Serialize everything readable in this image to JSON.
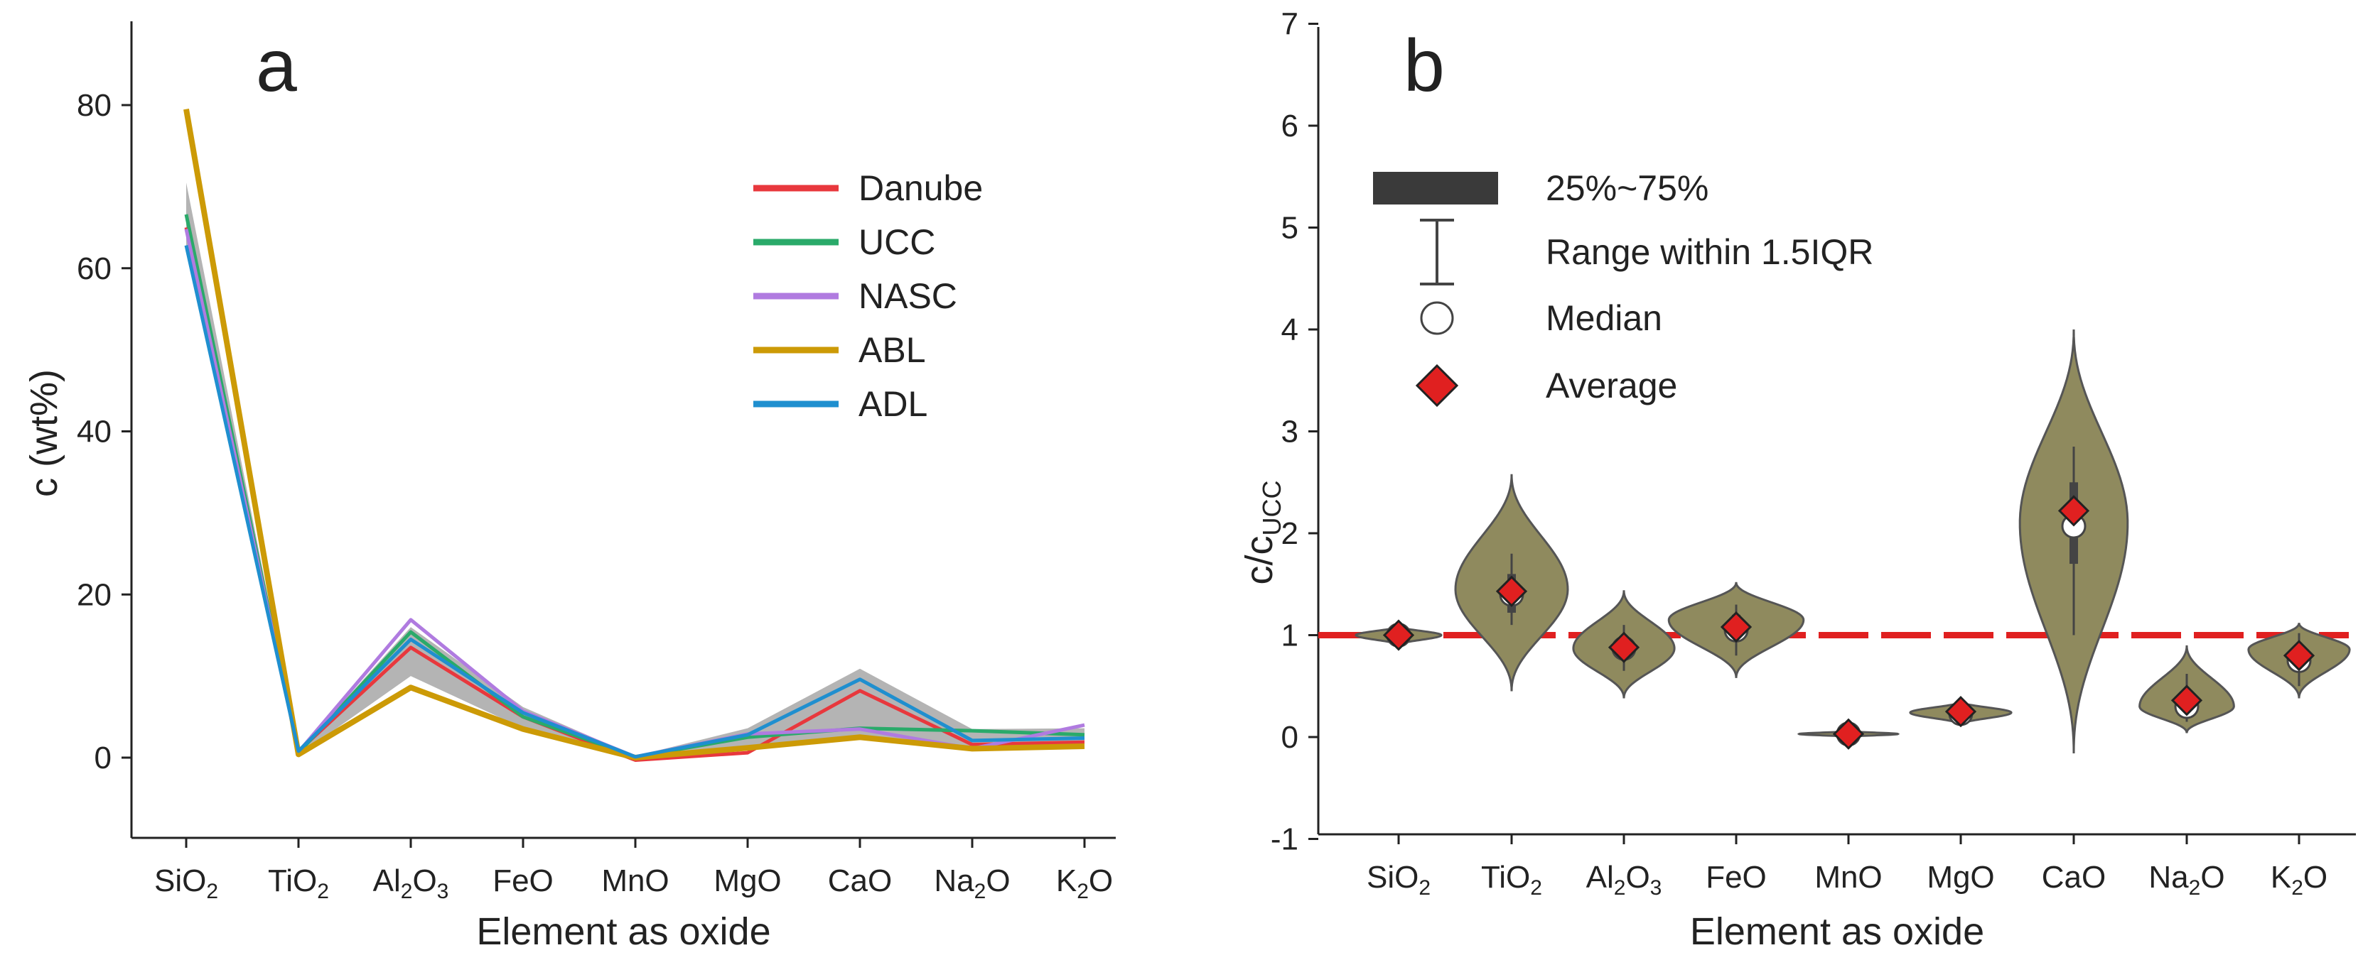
{
  "chart_data": [
    {
      "panel_label": "a",
      "type": "line",
      "xlabel": "Element as oxide",
      "ylabel": "c (wt%)",
      "ylim": [
        -10,
        90
      ],
      "yticks": [
        0,
        20,
        40,
        60,
        80
      ],
      "categories": [
        {
          "base": "SiO",
          "sub": "2",
          "tail": ""
        },
        {
          "base": "TiO",
          "sub": "2",
          "tail": ""
        },
        {
          "base": "Al",
          "sub": "2",
          "tail": "O",
          "sub2": "3"
        },
        {
          "base": "FeO",
          "sub": "",
          "tail": ""
        },
        {
          "base": "MnO",
          "sub": "",
          "tail": ""
        },
        {
          "base": "MgO",
          "sub": "",
          "tail": ""
        },
        {
          "base": "CaO",
          "sub": "",
          "tail": ""
        },
        {
          "base": "Na",
          "sub": "2",
          "tail": "O"
        },
        {
          "base": "K",
          "sub": "2",
          "tail": "O"
        }
      ],
      "range_band": {
        "color": "#b4b4b4",
        "upper": [
          70.5,
          0.8,
          16.0,
          6.2,
          0.2,
          3.6,
          10.9,
          3.5,
          3.6
        ],
        "lower": [
          62.0,
          0.3,
          10.0,
          3.6,
          0.0,
          1.0,
          2.6,
          1.0,
          1.3
        ]
      },
      "series": [
        {
          "name": "Danube",
          "color": "#e8383d",
          "values": [
            65.0,
            0.8,
            13.5,
            5.0,
            -0.3,
            0.6,
            8.2,
            1.6,
            1.9
          ]
        },
        {
          "name": "UCC",
          "color": "#2aaa6a",
          "values": [
            66.6,
            0.6,
            15.4,
            5.0,
            0.1,
            2.5,
            3.6,
            3.3,
            2.8
          ]
        },
        {
          "name": "NASC",
          "color": "#b07be0",
          "values": [
            64.8,
            0.7,
            16.9,
            5.7,
            0.1,
            2.9,
            3.5,
            1.1,
            4.0
          ]
        },
        {
          "name": "ABL",
          "color": "#cc9a06",
          "values": [
            79.5,
            0.4,
            8.6,
            3.5,
            0.0,
            1.2,
            2.5,
            1.1,
            1.4
          ]
        },
        {
          "name": "ADL",
          "color": "#1f8fcf",
          "values": [
            62.8,
            0.8,
            14.5,
            5.5,
            0.1,
            2.8,
            9.6,
            2.1,
            2.4
          ]
        }
      ]
    },
    {
      "panel_label": "b",
      "type": "violin",
      "xlabel": "Element as oxide",
      "ylabel_base": "c/c",
      "ylabel_sub": "UCC",
      "ylim": [
        -1,
        7
      ],
      "yticks": [
        -1,
        0,
        1,
        2,
        3,
        4,
        5,
        6,
        7
      ],
      "reference_line": {
        "value": 1,
        "color": "#e02020"
      },
      "violin_color": "#8f8a5e",
      "legend": [
        {
          "symbol": "box",
          "label": "25%~75%"
        },
        {
          "symbol": "whisker",
          "label": "Range within 1.5IQR"
        },
        {
          "symbol": "circle",
          "label": "Median"
        },
        {
          "symbol": "diamond",
          "label": "Average"
        }
      ],
      "violins": [
        {
          "category": "SiO2",
          "y_min": 0.9,
          "y_max": 1.09,
          "max_halfwidth": 0.38,
          "peak": 1.0,
          "median": 1.0,
          "mean": 1.0,
          "q1": 0.96,
          "q3": 1.04,
          "wlow": 0.92,
          "whigh": 1.07
        },
        {
          "category": "TiO2",
          "y_min": 0.45,
          "y_max": 2.58,
          "max_halfwidth": 0.5,
          "peak": 1.45,
          "median": 1.4,
          "mean": 1.43,
          "q1": 1.22,
          "q3": 1.6,
          "wlow": 1.1,
          "whigh": 1.8
        },
        {
          "category": "Al2O3",
          "y_min": 0.38,
          "y_max": 1.44,
          "max_halfwidth": 0.45,
          "peak": 0.87,
          "median": 0.87,
          "mean": 0.88,
          "q1": 0.78,
          "q3": 0.98,
          "wlow": 0.65,
          "whigh": 1.1
        },
        {
          "category": "FeO",
          "y_min": 0.58,
          "y_max": 1.52,
          "max_halfwidth": 0.6,
          "peak": 1.15,
          "median": 1.05,
          "mean": 1.08,
          "q1": 0.95,
          "q3": 1.2,
          "wlow": 0.8,
          "whigh": 1.3
        },
        {
          "category": "MnO",
          "y_min": 0.0,
          "y_max": 0.06,
          "max_halfwidth": 0.44,
          "peak": 0.03,
          "median": 0.03,
          "mean": 0.03,
          "q1": 0.02,
          "q3": 0.04,
          "wlow": 0.01,
          "whigh": 0.05
        },
        {
          "category": "MgO",
          "y_min": 0.12,
          "y_max": 0.35,
          "max_halfwidth": 0.45,
          "peak": 0.24,
          "median": 0.23,
          "mean": 0.25,
          "q1": 0.2,
          "q3": 0.28,
          "wlow": 0.16,
          "whigh": 0.32
        },
        {
          "category": "CaO",
          "y_min": -0.16,
          "y_max": 4.0,
          "max_halfwidth": 0.48,
          "peak": 2.1,
          "median": 2.07,
          "mean": 2.22,
          "q1": 1.7,
          "q3": 2.5,
          "wlow": 1.0,
          "whigh": 2.85
        },
        {
          "category": "Na2O",
          "y_min": 0.04,
          "y_max": 0.9,
          "max_halfwidth": 0.42,
          "peak": 0.3,
          "median": 0.3,
          "mean": 0.36,
          "q1": 0.24,
          "q3": 0.42,
          "wlow": 0.15,
          "whigh": 0.62
        },
        {
          "category": "K2O",
          "y_min": 0.38,
          "y_max": 1.12,
          "max_halfwidth": 0.45,
          "peak": 0.86,
          "median": 0.75,
          "mean": 0.8,
          "q1": 0.68,
          "q3": 0.9,
          "wlow": 0.5,
          "whigh": 1.02
        }
      ]
    }
  ]
}
